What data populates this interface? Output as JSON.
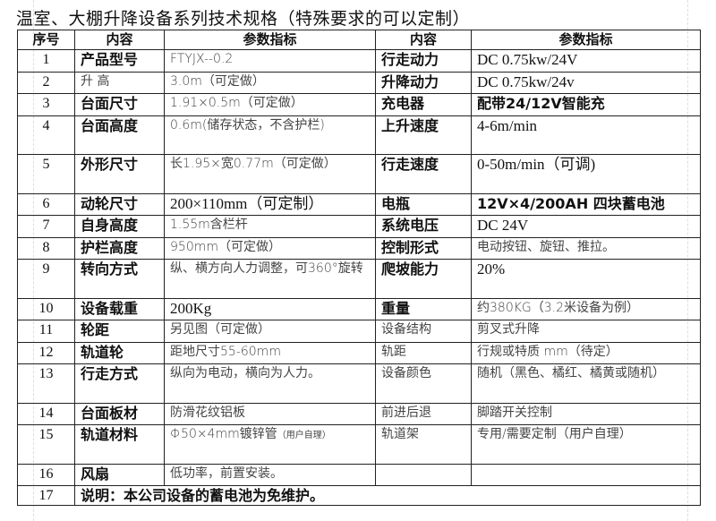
{
  "title": "温室、大棚升降设备系列技术规格（特殊要求的可以定制）",
  "table": {
    "headers": [
      "序号",
      "内容",
      "参数指标",
      "内容",
      "参数指标"
    ],
    "rows": [
      [
        "1",
        "产品型号",
        "FTYJX--0.2",
        "行走动力",
        "DC  0.75kw/24V"
      ],
      [
        "2",
        "升    高",
        "3.0m（可定做）",
        "升降动力",
        "DC  0.75kw/24v"
      ],
      [
        "3",
        "台面尺寸",
        "1.91×0.5m（可定做）",
        "充电器",
        "配带24/12V智能充"
      ],
      [
        "4",
        "台面高度",
        "0.6m(储存状态，不含护栏)",
        "上升速度",
        "4-6m/min"
      ],
      [
        "5",
        "外形尺寸",
        "长1.95×宽0.77m（可定做）",
        "行走速度",
        "0-50m/min（可调)"
      ],
      [
        "6",
        "动轮尺寸",
        "200×110mm（可定制）",
        "电瓶",
        "12V×4/200AH 四块蓄电池"
      ],
      [
        "7",
        "自身高度",
        "1.55m含栏杆",
        "系统电压",
        "DC  24V"
      ],
      [
        "8",
        "护栏高度",
        "950mm（可定做）",
        "控制形式",
        "电动按钮、旋钮、推拉。"
      ],
      [
        "9",
        "转向方式",
        "纵、横方向人力调整，可360°旋转",
        "爬坡能力",
        "20%"
      ],
      [
        "10",
        "设备载重",
        "200Kg",
        "重量",
        "约380KG（3.2米设备为例）"
      ],
      [
        "11",
        "轮距",
        "另见图（可定做）",
        "设备结构",
        "剪叉式升降"
      ],
      [
        "12",
        "轨道轮",
        "距地尺寸55-60mm",
        "轨距",
        "行规或特质     mm（待定）"
      ],
      [
        "13",
        "行走方式",
        "纵向为电动，横向为人力。",
        "设备颜色",
        "随机（黑色、橘红、橘黄或随机）"
      ],
      [
        "14",
        "台面板材",
        "防滑花纹铝板",
        "前进后退",
        "脚踏开关控制"
      ],
      [
        "15",
        "轨道材料",
        "Φ50×4mm镀锌管",
        "轨道架",
        "专用/需要定制（用户自理）"
      ],
      [
        "16",
        "风扇",
        "低功率，前置安装。",
        "",
        ""
      ]
    ],
    "row15_note": "（用户自理）",
    "note_row": [
      "17",
      "说明：本公司设备的蓄电池为免维护。"
    ]
  }
}
